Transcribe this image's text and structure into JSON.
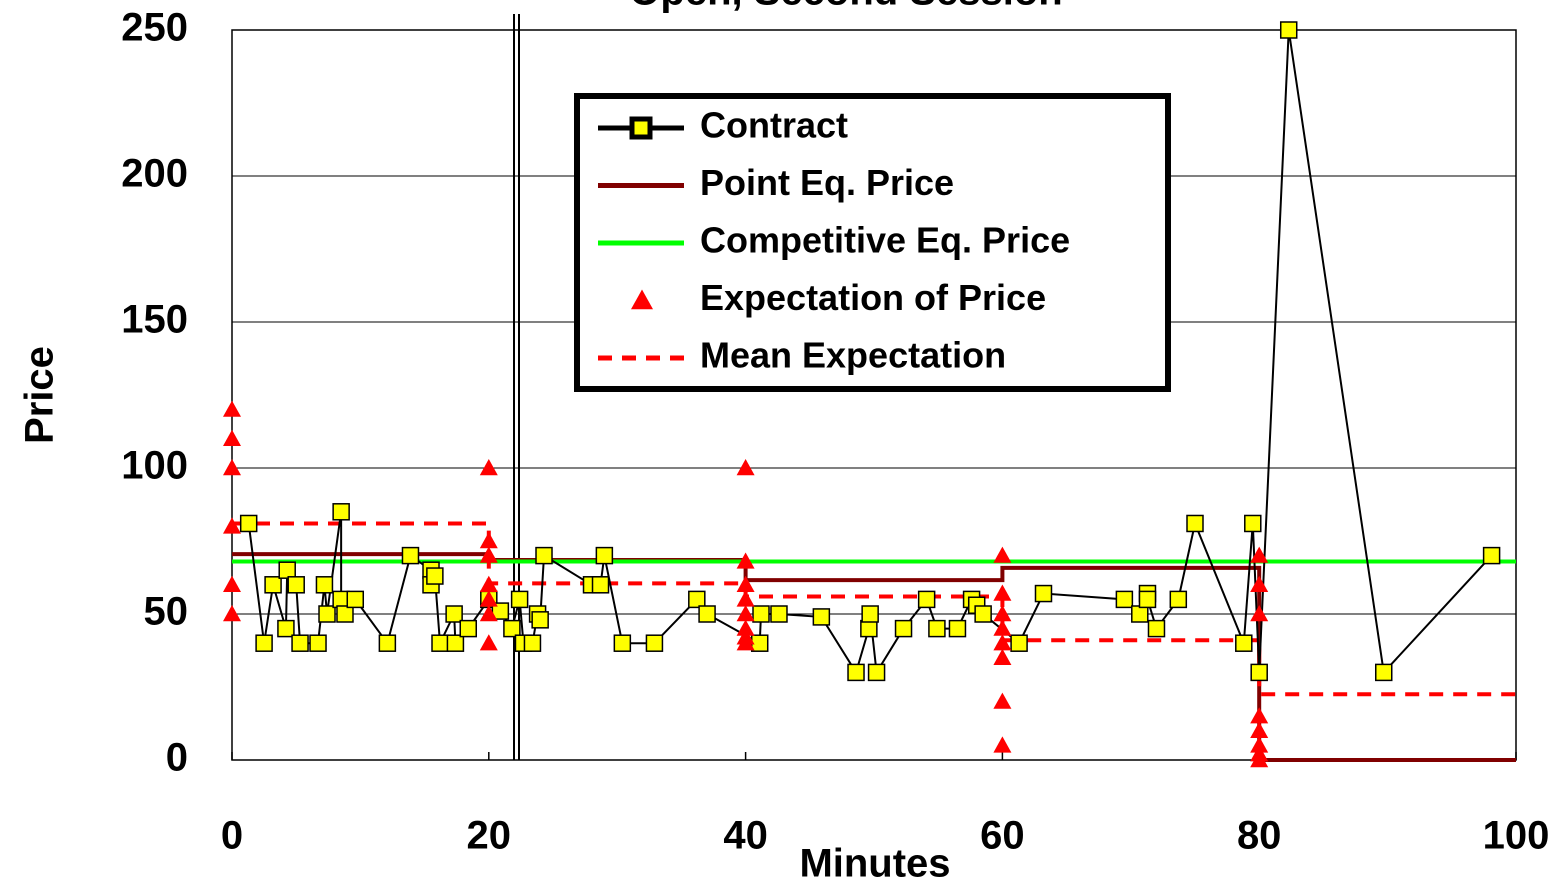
{
  "chart_data": {
    "type": "line",
    "title": "Open, Second Session",
    "x_label": "Minutes",
    "y_label": "Price",
    "xlim": [
      0,
      100
    ],
    "ylim": [
      0,
      250
    ],
    "xticks": [
      0,
      20,
      40,
      60,
      80,
      100
    ],
    "yticks": [
      0,
      50,
      100,
      150,
      200,
      250
    ],
    "grid": true,
    "legend": "top",
    "series": [
      {
        "name": "Contract",
        "color": "#000000",
        "marker_color": "#ffff00",
        "style": "line-square",
        "x": [
          1.3,
          2.5,
          3.2,
          4.2,
          4.3,
          5.0,
          5.3,
          6.7,
          7.2,
          7.4,
          8.5,
          8.5,
          8.8,
          9.6,
          12.1,
          13.9,
          15.5,
          15.5,
          15.8,
          16.2,
          17.3,
          17.4,
          18.4,
          20.0,
          20.9,
          21.8,
          22.4,
          22.7,
          23.4,
          23.8,
          24.0,
          24.3,
          28.0,
          28.7,
          29.0,
          30.4,
          32.9,
          36.2,
          37.0,
          41.1,
          41.2,
          42.6,
          45.9,
          48.6,
          49.6,
          49.7,
          50.2,
          52.3,
          54.1,
          54.9,
          56.5,
          57.6,
          58.0,
          58.5,
          61.3,
          63.2,
          69.5,
          70.7,
          71.3,
          71.3,
          72.0,
          73.7,
          75.0,
          78.8,
          79.5,
          80.0,
          82.3,
          89.7,
          98.1
        ],
        "values": [
          81,
          40,
          60,
          45,
          65,
          60,
          40,
          40,
          60,
          50,
          85,
          55,
          50,
          55,
          40,
          70,
          65,
          60,
          63,
          40,
          50,
          40,
          45,
          55,
          51,
          45,
          55,
          40,
          40,
          50,
          48,
          70,
          60,
          60,
          70,
          40,
          40,
          55,
          50,
          40,
          50,
          50,
          49,
          30,
          45,
          50,
          30,
          45,
          55,
          45,
          45,
          55,
          53,
          50,
          40,
          57,
          55,
          50,
          57,
          55,
          45,
          55,
          81,
          40,
          81,
          30,
          250,
          30,
          70
        ]
      },
      {
        "name": "Point Eq. Price",
        "color": "#800000",
        "style": "line",
        "x": [
          0,
          20,
          20,
          40,
          40,
          60,
          60,
          80,
          80,
          100
        ],
        "values": [
          70.5,
          70.5,
          68.5,
          68.5,
          61.6,
          61.6,
          65.8,
          65.8,
          0,
          0
        ]
      },
      {
        "name": "Competitive Eq. Price",
        "color": "#00ff00",
        "style": "line",
        "x": [
          0,
          100
        ],
        "values": [
          68,
          68
        ]
      },
      {
        "name": "Expectation of Price",
        "color": "#ff0000",
        "style": "triangle",
        "x": [
          0,
          0,
          0,
          0,
          0,
          0,
          20,
          20,
          20,
          20,
          20,
          20,
          20,
          40,
          40,
          40,
          40,
          40,
          40,
          40,
          40,
          60,
          60,
          60,
          60,
          60,
          60,
          60,
          60,
          80,
          80,
          80,
          80,
          80,
          80,
          80,
          80
        ],
        "values": [
          120,
          110,
          100,
          80,
          60,
          50,
          100,
          75,
          70,
          60,
          55,
          50,
          40,
          100,
          68,
          60,
          55,
          50,
          45,
          42,
          40,
          70,
          57,
          50,
          45,
          40,
          35,
          20,
          5,
          70,
          60,
          50,
          15,
          10,
          5,
          2,
          0
        ]
      },
      {
        "name": "Mean Expectation",
        "color": "#ff0000",
        "style": "dashed",
        "x": [
          0,
          20,
          20,
          40,
          40,
          60,
          60,
          80,
          80,
          100
        ],
        "values": [
          81,
          81,
          60.5,
          60.5,
          56,
          56,
          41,
          41,
          22.5,
          22.5
        ]
      }
    ]
  }
}
